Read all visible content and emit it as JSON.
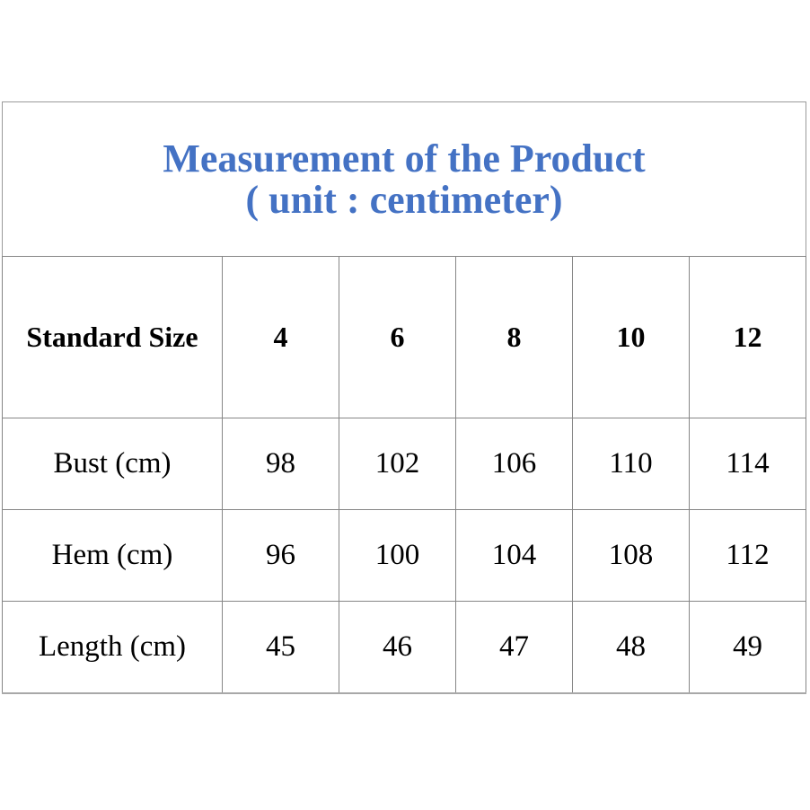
{
  "title": {
    "line1": "Measurement of the Product",
    "line2": "( unit : centimeter)"
  },
  "colors": {
    "title_blue": "#4472C4",
    "table_border": "#868686",
    "outer_border": "#9a9a9a",
    "text": "#000000",
    "background": "#ffffff"
  },
  "chart_data": {
    "type": "table",
    "title": "Measurement of the Product ( unit : centimeter)",
    "columns": [
      "Standard Size",
      "4",
      "6",
      "8",
      "10",
      "12"
    ],
    "rows": [
      [
        "Bust (cm)",
        "98",
        "102",
        "106",
        "110",
        "114"
      ],
      [
        "Hem (cm)",
        "96",
        "100",
        "104",
        "108",
        "112"
      ],
      [
        "Length (cm)",
        "45",
        "46",
        "47",
        "48",
        "49"
      ]
    ]
  }
}
